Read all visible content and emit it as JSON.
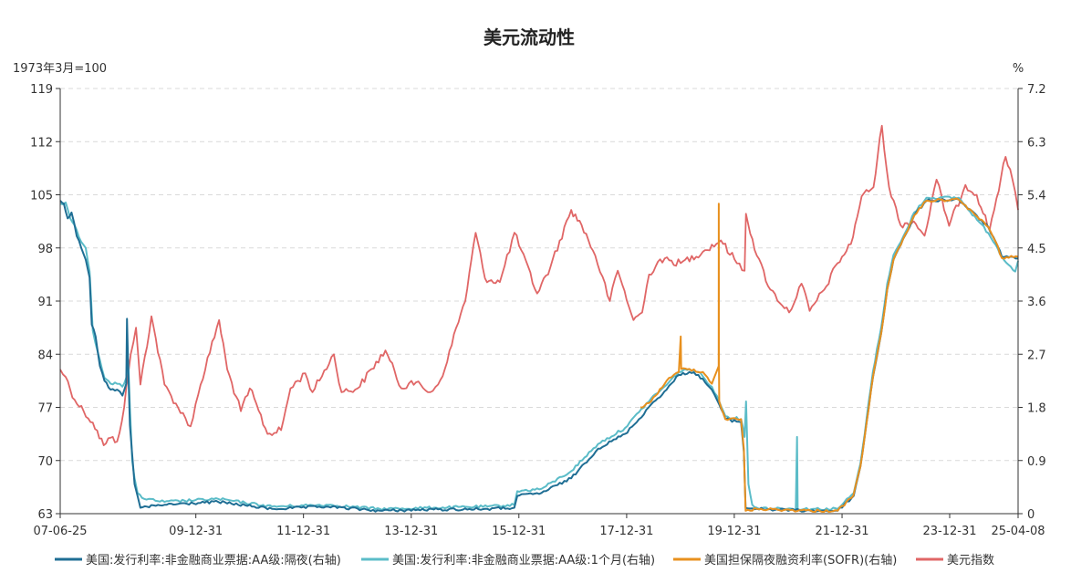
{
  "chart_data": {
    "type": "line",
    "title": "美元流动性",
    "left_axis": {
      "label": "1973年3月=100",
      "ylim": [
        63,
        119
      ],
      "ticks": [
        "63",
        "70",
        "77",
        "84",
        "91",
        "98",
        "105",
        "112",
        "119"
      ]
    },
    "right_axis": {
      "label": "%",
      "ylim": [
        0,
        7.2
      ],
      "ticks": [
        "0",
        "0.9",
        "1.8",
        "2.7",
        "3.6",
        "4.5",
        "5.4",
        "6.3",
        "7.2"
      ]
    },
    "x_axis": {
      "range": [
        "2007-06-25",
        "2025-04-08"
      ],
      "ticks": [
        "07-06-25",
        "09-12-31",
        "11-12-31",
        "13-12-31",
        "15-12-31",
        "17-12-31",
        "19-12-31",
        "21-12-31",
        "23-12-31",
        "25-04-08"
      ],
      "tick_dates": [
        "2007-06-25",
        "2009-12-31",
        "2011-12-31",
        "2013-12-31",
        "2015-12-31",
        "2017-12-31",
        "2019-12-31",
        "2021-12-31",
        "2023-12-31",
        "2025-04-08"
      ]
    },
    "grid": true,
    "legend_position": "bottom",
    "series": [
      {
        "name": "美国:发行利率:非金融商业票据:AA级:隔夜(右轴)",
        "axis": "right",
        "color": "#1f6e94",
        "points": [
          [
            "2007-06-25",
            5.3
          ],
          [
            "2007-07-20",
            5.25
          ],
          [
            "2007-08-15",
            5.0
          ],
          [
            "2007-09-10",
            5.1
          ],
          [
            "2007-10-15",
            4.7
          ],
          [
            "2007-11-15",
            4.5
          ],
          [
            "2007-12-15",
            4.3
          ],
          [
            "2008-01-10",
            4.0
          ],
          [
            "2008-01-25",
            3.2
          ],
          [
            "2008-02-20",
            3.0
          ],
          [
            "2008-03-20",
            2.5
          ],
          [
            "2008-04-20",
            2.25
          ],
          [
            "2008-06-01",
            2.1
          ],
          [
            "2008-07-15",
            2.1
          ],
          [
            "2008-08-20",
            2.0
          ],
          [
            "2008-09-15",
            2.2
          ],
          [
            "2008-09-20",
            3.3
          ],
          [
            "2008-09-28",
            2.5
          ],
          [
            "2008-10-10",
            1.5
          ],
          [
            "2008-10-25",
            1.0
          ],
          [
            "2008-11-10",
            0.5
          ],
          [
            "2008-12-01",
            0.3
          ],
          [
            "2008-12-20",
            0.1
          ],
          [
            "2009-06-01",
            0.15
          ],
          [
            "2010-06-01",
            0.2
          ],
          [
            "2011-06-01",
            0.08
          ],
          [
            "2012-06-01",
            0.12
          ],
          [
            "2013-06-01",
            0.05
          ],
          [
            "2014-06-01",
            0.07
          ],
          [
            "2015-06-01",
            0.08
          ],
          [
            "2015-11-30",
            0.1
          ],
          [
            "2015-12-20",
            0.3
          ],
          [
            "2016-06-01",
            0.35
          ],
          [
            "2016-12-20",
            0.6
          ],
          [
            "2017-03-20",
            0.85
          ],
          [
            "2017-06-20",
            1.1
          ],
          [
            "2017-12-20",
            1.35
          ],
          [
            "2018-03-25",
            1.6
          ],
          [
            "2018-06-15",
            1.85
          ],
          [
            "2018-09-28",
            2.1
          ],
          [
            "2018-12-20",
            2.35
          ],
          [
            "2019-03-01",
            2.4
          ],
          [
            "2019-05-01",
            2.35
          ],
          [
            "2019-08-01",
            2.1
          ],
          [
            "2019-09-20",
            1.85
          ],
          [
            "2019-11-01",
            1.6
          ],
          [
            "2020-02-15",
            1.55
          ],
          [
            "2020-03-05",
            1.05
          ],
          [
            "2020-03-17",
            0.1
          ],
          [
            "2020-06-01",
            0.08
          ],
          [
            "2021-06-01",
            0.05
          ],
          [
            "2021-12-01",
            0.05
          ],
          [
            "2022-03-20",
            0.3
          ],
          [
            "2022-05-05",
            0.8
          ],
          [
            "2022-06-16",
            1.55
          ],
          [
            "2022-07-28",
            2.3
          ],
          [
            "2022-09-22",
            3.05
          ],
          [
            "2022-11-03",
            3.8
          ],
          [
            "2022-12-15",
            4.3
          ],
          [
            "2023-02-02",
            4.55
          ],
          [
            "2023-03-23",
            4.8
          ],
          [
            "2023-05-04",
            5.05
          ],
          [
            "2023-07-27",
            5.3
          ],
          [
            "2024-03-01",
            5.32
          ],
          [
            "2024-09-19",
            4.85
          ],
          [
            "2024-11-08",
            4.6
          ],
          [
            "2024-12-19",
            4.35
          ],
          [
            "2025-04-08",
            4.32
          ]
        ]
      },
      {
        "name": "美国:发行利率:非金融商业票据:AA级:1个月(右轴)",
        "axis": "right",
        "color": "#5bbcc8",
        "points": [
          [
            "2007-06-25",
            5.25
          ],
          [
            "2007-08-01",
            5.27
          ],
          [
            "2007-09-01",
            5.0
          ],
          [
            "2007-10-15",
            4.8
          ],
          [
            "2007-11-15",
            4.6
          ],
          [
            "2007-12-15",
            4.5
          ],
          [
            "2008-01-10",
            4.1
          ],
          [
            "2008-02-01",
            3.1
          ],
          [
            "2008-03-20",
            2.6
          ],
          [
            "2008-04-20",
            2.3
          ],
          [
            "2008-06-01",
            2.2
          ],
          [
            "2008-07-15",
            2.2
          ],
          [
            "2008-08-20",
            2.15
          ],
          [
            "2008-09-15",
            2.3
          ],
          [
            "2008-09-28",
            2.6
          ],
          [
            "2008-10-10",
            1.8
          ],
          [
            "2008-10-25",
            0.9
          ],
          [
            "2008-11-10",
            0.6
          ],
          [
            "2008-12-01",
            0.35
          ],
          [
            "2009-01-15",
            0.25
          ],
          [
            "2009-06-01",
            0.2
          ],
          [
            "2010-06-01",
            0.25
          ],
          [
            "2011-06-01",
            0.12
          ],
          [
            "2012-06-01",
            0.15
          ],
          [
            "2013-06-01",
            0.08
          ],
          [
            "2014-06-01",
            0.1
          ],
          [
            "2015-06-01",
            0.12
          ],
          [
            "2015-11-30",
            0.15
          ],
          [
            "2015-12-20",
            0.38
          ],
          [
            "2016-06-01",
            0.42
          ],
          [
            "2016-12-20",
            0.72
          ],
          [
            "2017-03-20",
            0.95
          ],
          [
            "2017-06-20",
            1.18
          ],
          [
            "2017-12-20",
            1.45
          ],
          [
            "2018-03-25",
            1.72
          ],
          [
            "2018-06-15",
            1.95
          ],
          [
            "2018-09-28",
            2.18
          ],
          [
            "2018-12-20",
            2.4
          ],
          [
            "2019-03-01",
            2.45
          ],
          [
            "2019-05-01",
            2.4
          ],
          [
            "2019-08-01",
            2.15
          ],
          [
            "2019-09-20",
            1.9
          ],
          [
            "2019-11-01",
            1.65
          ],
          [
            "2020-02-15",
            1.6
          ],
          [
            "2020-03-10",
            1.3
          ],
          [
            "2020-03-20",
            1.9
          ],
          [
            "2020-04-05",
            0.5
          ],
          [
            "2020-05-01",
            0.15
          ],
          [
            "2020-06-01",
            0.1
          ],
          [
            "2021-02-20",
            0.08
          ],
          [
            "2021-03-01",
            1.3
          ],
          [
            "2021-03-05",
            0.08
          ],
          [
            "2021-12-01",
            0.08
          ],
          [
            "2022-03-20",
            0.35
          ],
          [
            "2022-05-05",
            0.85
          ],
          [
            "2022-06-16",
            1.62
          ],
          [
            "2022-07-28",
            2.4
          ],
          [
            "2022-09-22",
            3.15
          ],
          [
            "2022-11-03",
            3.9
          ],
          [
            "2022-12-15",
            4.38
          ],
          [
            "2023-02-02",
            4.6
          ],
          [
            "2023-03-23",
            4.85
          ],
          [
            "2023-05-04",
            5.1
          ],
          [
            "2023-07-27",
            5.35
          ],
          [
            "2024-03-01",
            5.35
          ],
          [
            "2024-09-19",
            4.75
          ],
          [
            "2024-11-08",
            4.55
          ],
          [
            "2024-12-19",
            4.35
          ],
          [
            "2025-03-20",
            4.1
          ],
          [
            "2025-04-08",
            4.28
          ]
        ]
      },
      {
        "name": "美国担保隔夜融资利率(SOFR)(右轴)",
        "axis": "right",
        "color": "#e8901e",
        "points": [
          [
            "2018-04-03",
            1.8
          ],
          [
            "2018-06-15",
            1.9
          ],
          [
            "2018-09-28",
            2.25
          ],
          [
            "2018-12-20",
            2.4
          ],
          [
            "2019-01-02",
            3.0
          ],
          [
            "2019-01-05",
            2.45
          ],
          [
            "2019-03-01",
            2.45
          ],
          [
            "2019-06-01",
            2.4
          ],
          [
            "2019-08-01",
            2.2
          ],
          [
            "2019-09-16",
            2.5
          ],
          [
            "2019-09-17",
            5.25
          ],
          [
            "2019-09-18",
            2.5
          ],
          [
            "2019-09-20",
            1.9
          ],
          [
            "2019-11-01",
            1.6
          ],
          [
            "2020-02-15",
            1.6
          ],
          [
            "2020-03-05",
            1.1
          ],
          [
            "2020-03-17",
            0.05
          ],
          [
            "2020-06-01",
            0.08
          ],
          [
            "2021-06-01",
            0.05
          ],
          [
            "2021-12-01",
            0.05
          ],
          [
            "2022-03-17",
            0.3
          ],
          [
            "2022-05-05",
            0.8
          ],
          [
            "2022-06-16",
            1.55
          ],
          [
            "2022-07-28",
            2.3
          ],
          [
            "2022-09-22",
            3.05
          ],
          [
            "2022-11-03",
            3.8
          ],
          [
            "2022-12-15",
            4.3
          ],
          [
            "2023-02-02",
            4.55
          ],
          [
            "2023-03-23",
            4.8
          ],
          [
            "2023-05-04",
            5.05
          ],
          [
            "2023-07-27",
            5.3
          ],
          [
            "2024-03-01",
            5.32
          ],
          [
            "2024-09-19",
            4.85
          ],
          [
            "2024-11-08",
            4.6
          ],
          [
            "2024-12-19",
            4.33
          ],
          [
            "2025-04-08",
            4.35
          ]
        ]
      },
      {
        "name": "美元指数",
        "axis": "left",
        "color": "#e06666",
        "points": [
          [
            "2007-06-25",
            82.0
          ],
          [
            "2007-08-01",
            81.0
          ],
          [
            "2007-10-01",
            78.0
          ],
          [
            "2007-12-01",
            76.5
          ],
          [
            "2008-02-01",
            75.0
          ],
          [
            "2008-04-15",
            72.0
          ],
          [
            "2008-06-01",
            73.0
          ],
          [
            "2008-07-15",
            72.5
          ],
          [
            "2008-09-01",
            77.0
          ],
          [
            "2008-10-15",
            84.0
          ],
          [
            "2008-11-20",
            87.5
          ],
          [
            "2008-12-20",
            80.0
          ],
          [
            "2009-03-05",
            89.0
          ],
          [
            "2009-06-01",
            80.0
          ],
          [
            "2009-09-01",
            77.0
          ],
          [
            "2009-11-25",
            74.5
          ],
          [
            "2010-02-01",
            80.0
          ],
          [
            "2010-06-07",
            88.5
          ],
          [
            "2010-08-01",
            82.0
          ],
          [
            "2010-11-01",
            76.5
          ],
          [
            "2011-01-01",
            79.5
          ],
          [
            "2011-05-01",
            73.5
          ],
          [
            "2011-08-01",
            74.0
          ],
          [
            "2011-10-04",
            79.5
          ],
          [
            "2012-01-12",
            81.5
          ],
          [
            "2012-03-01",
            79.0
          ],
          [
            "2012-07-24",
            84.0
          ],
          [
            "2012-09-14",
            79.0
          ],
          [
            "2013-01-01",
            79.5
          ],
          [
            "2013-07-09",
            84.5
          ],
          [
            "2013-10-25",
            79.5
          ],
          [
            "2014-01-01",
            80.5
          ],
          [
            "2014-05-08",
            79.0
          ],
          [
            "2014-07-01",
            80.0
          ],
          [
            "2014-09-01",
            83.0
          ],
          [
            "2014-11-01",
            87.5
          ],
          [
            "2015-01-01",
            91.0
          ],
          [
            "2015-03-13",
            100.0
          ],
          [
            "2015-05-15",
            94.0
          ],
          [
            "2015-08-24",
            93.5
          ],
          [
            "2015-12-01",
            100.0
          ],
          [
            "2016-05-03",
            92.0
          ],
          [
            "2016-08-01",
            95.5
          ],
          [
            "2016-12-20",
            103.0
          ],
          [
            "2017-03-01",
            101.0
          ],
          [
            "2017-06-01",
            97.0
          ],
          [
            "2017-09-08",
            91.0
          ],
          [
            "2017-11-01",
            95.0
          ],
          [
            "2018-02-15",
            88.5
          ],
          [
            "2018-04-15",
            89.5
          ],
          [
            "2018-06-01",
            94.5
          ],
          [
            "2018-08-15",
            96.5
          ],
          [
            "2019-01-01",
            96.0
          ],
          [
            "2019-06-01",
            97.5
          ],
          [
            "2019-10-01",
            99.0
          ],
          [
            "2020-01-01",
            96.5
          ],
          [
            "2020-03-10",
            95.0
          ],
          [
            "2020-03-19",
            102.5
          ],
          [
            "2020-06-01",
            97.0
          ],
          [
            "2020-09-01",
            92.5
          ],
          [
            "2021-01-06",
            89.5
          ],
          [
            "2021-03-31",
            93.3
          ],
          [
            "2021-05-25",
            89.7
          ],
          [
            "2021-09-01",
            92.5
          ],
          [
            "2021-12-01",
            96.0
          ],
          [
            "2022-03-01",
            98.5
          ],
          [
            "2022-05-13",
            104.8
          ],
          [
            "2022-08-01",
            106.0
          ],
          [
            "2022-09-27",
            114.1
          ],
          [
            "2022-11-15",
            106.0
          ],
          [
            "2023-02-01",
            101.0
          ],
          [
            "2023-05-01",
            101.5
          ],
          [
            "2023-07-14",
            99.6
          ],
          [
            "2023-10-03",
            107.0
          ],
          [
            "2023-12-27",
            100.9
          ],
          [
            "2024-04-16",
            106.3
          ],
          [
            "2024-07-01",
            105.0
          ],
          [
            "2024-09-27",
            100.4
          ],
          [
            "2025-01-13",
            110.0
          ],
          [
            "2025-03-01",
            107.0
          ],
          [
            "2025-04-08",
            103.0
          ]
        ]
      }
    ]
  }
}
